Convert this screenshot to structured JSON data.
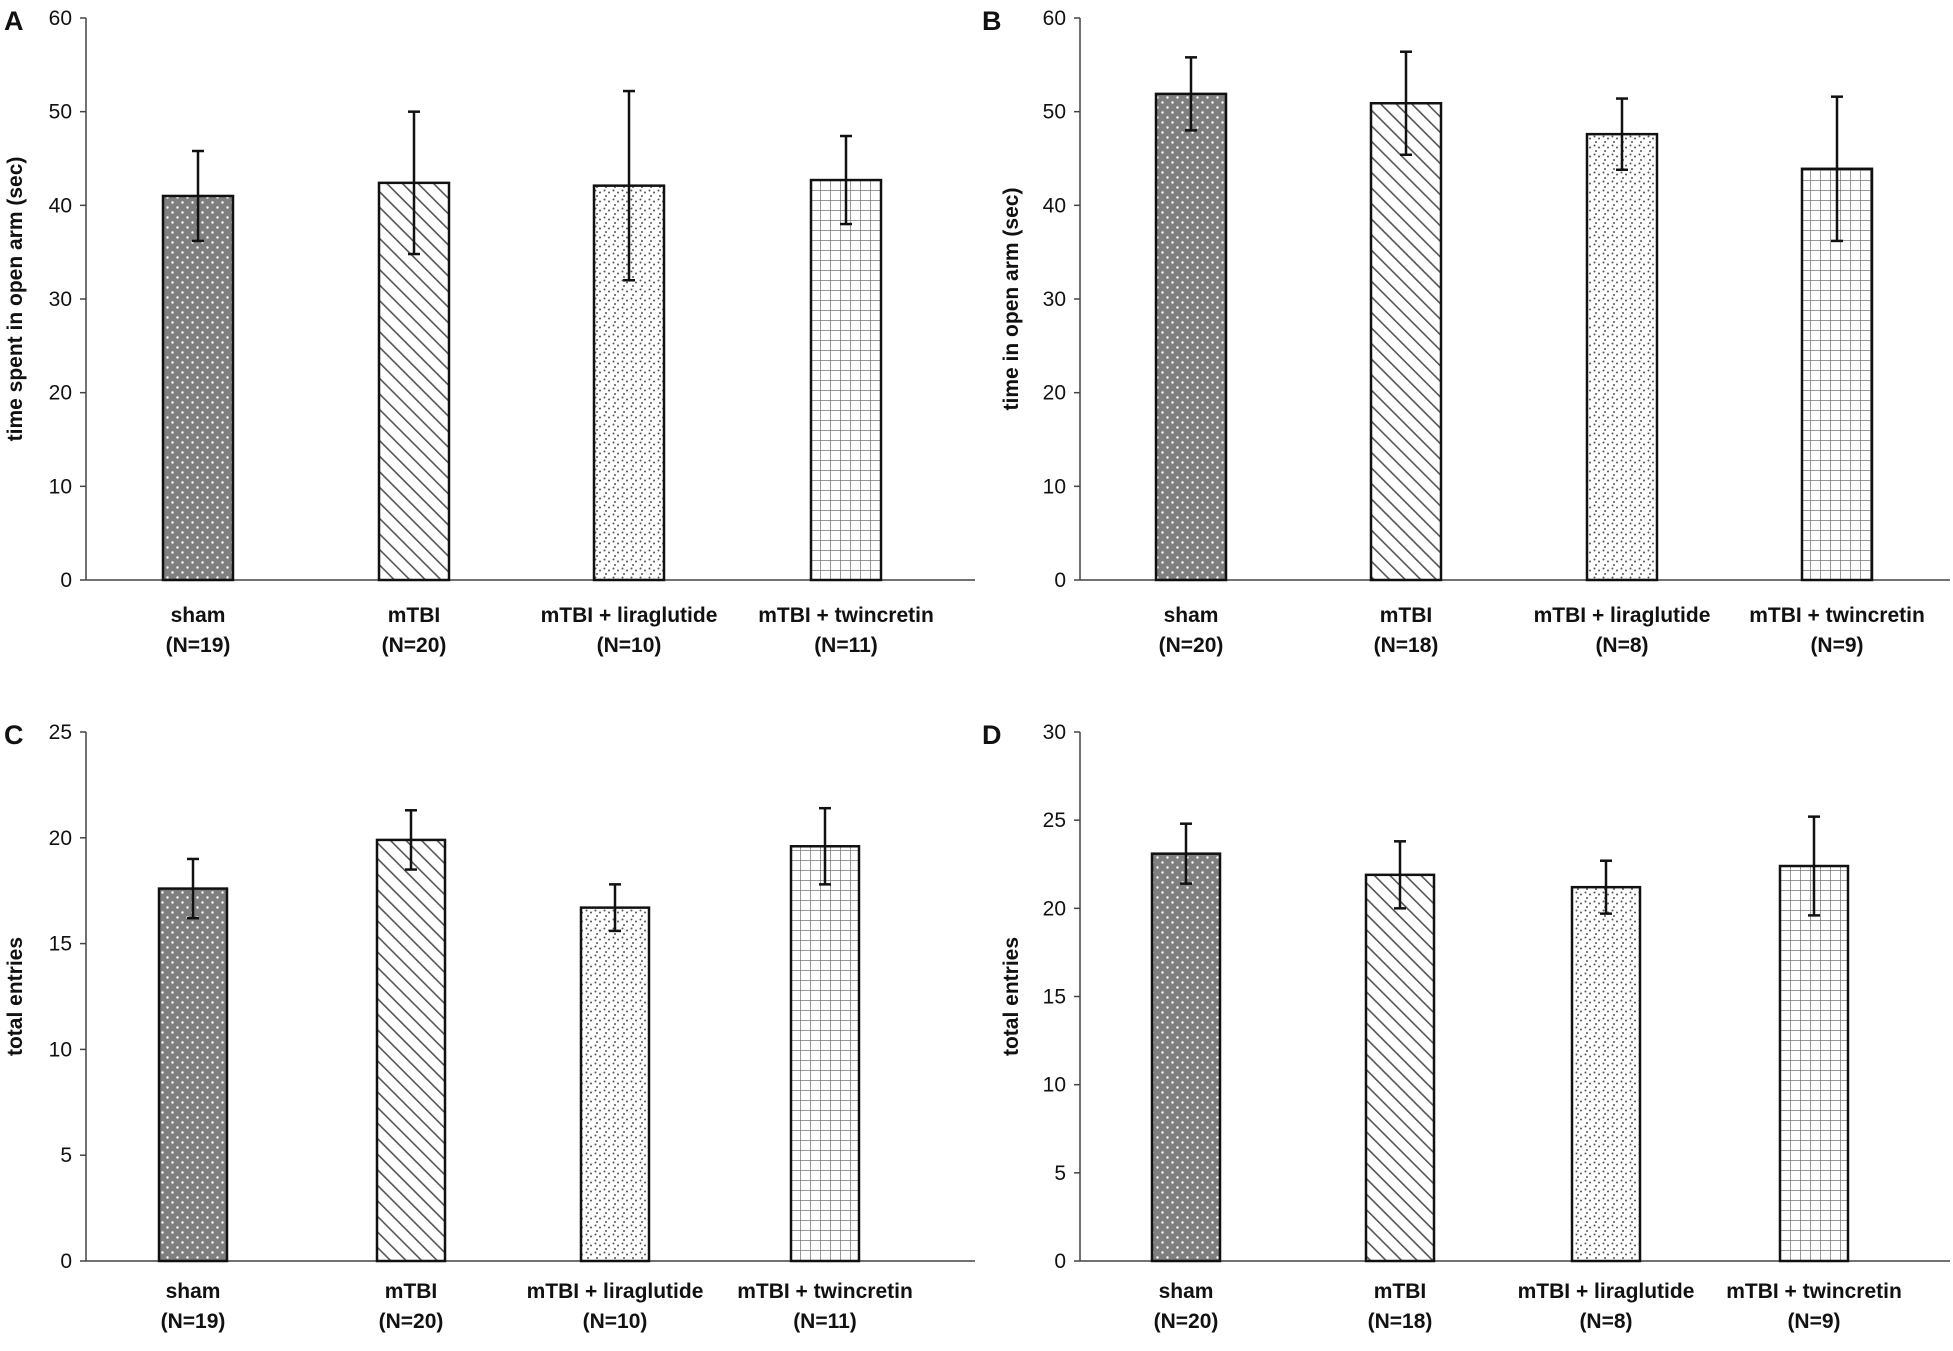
{
  "chart_data": [
    {
      "panel": "A",
      "type": "bar",
      "ylabel": "time spent in open arm (sec)",
      "ylim": [
        0,
        60
      ],
      "yticks": [
        0,
        10,
        20,
        30,
        40,
        50,
        60
      ],
      "categories": [
        {
          "name": "sham",
          "n": "(N=19)"
        },
        {
          "name": "mTBI",
          "n": "(N=20)"
        },
        {
          "name": "mTBI + liraglutide",
          "n": "(N=10)"
        },
        {
          "name": "mTBI + twincretin",
          "n": "(N=11)"
        }
      ],
      "values": [
        41.0,
        42.4,
        42.1,
        42.7
      ],
      "errors": [
        4.8,
        7.6,
        10.1,
        4.7
      ]
    },
    {
      "panel": "B",
      "type": "bar",
      "ylabel": "time in open arm (sec)",
      "ylim": [
        0,
        60
      ],
      "yticks": [
        0,
        10,
        20,
        30,
        40,
        50,
        60
      ],
      "categories": [
        {
          "name": "sham",
          "n": "(N=20)"
        },
        {
          "name": "mTBI",
          "n": "(N=18)"
        },
        {
          "name": "mTBI + liraglutide",
          "n": "(N=8)"
        },
        {
          "name": "mTBI + twincretin",
          "n": "(N=9)"
        }
      ],
      "values": [
        51.9,
        50.9,
        47.6,
        43.9
      ],
      "errors": [
        3.9,
        5.5,
        3.8,
        7.7
      ]
    },
    {
      "panel": "C",
      "type": "bar",
      "ylabel": "total entries",
      "ylim": [
        0,
        25
      ],
      "yticks": [
        0,
        5,
        10,
        15,
        20,
        25
      ],
      "categories": [
        {
          "name": "sham",
          "n": "(N=19)"
        },
        {
          "name": "mTBI",
          "n": "(N=20)"
        },
        {
          "name": "mTBI + liraglutide",
          "n": "(N=10)"
        },
        {
          "name": "mTBI + twincretin",
          "n": "(N=11)"
        }
      ],
      "values": [
        17.6,
        19.9,
        16.7,
        19.6
      ],
      "errors": [
        1.4,
        1.4,
        1.1,
        1.8
      ]
    },
    {
      "panel": "D",
      "type": "bar",
      "ylabel": "total entries",
      "ylim": [
        0,
        30
      ],
      "yticks": [
        0,
        5,
        10,
        15,
        20,
        25,
        30
      ],
      "categories": [
        {
          "name": "sham",
          "n": "(N=20)"
        },
        {
          "name": "mTBI",
          "n": "(N=18)"
        },
        {
          "name": "mTBI + liraglutide",
          "n": "(N=8)"
        },
        {
          "name": "mTBI + twincretin",
          "n": "(N=9)"
        }
      ],
      "values": [
        23.1,
        21.9,
        21.2,
        22.4
      ],
      "errors": [
        1.7,
        1.9,
        1.5,
        2.8
      ]
    }
  ],
  "patterns": [
    "dark-dots",
    "diagonal-hatch",
    "speckle",
    "grid"
  ],
  "colors": {
    "dark_fill": "#7f7f7f",
    "stroke": "#111111",
    "axis": "#444444"
  }
}
